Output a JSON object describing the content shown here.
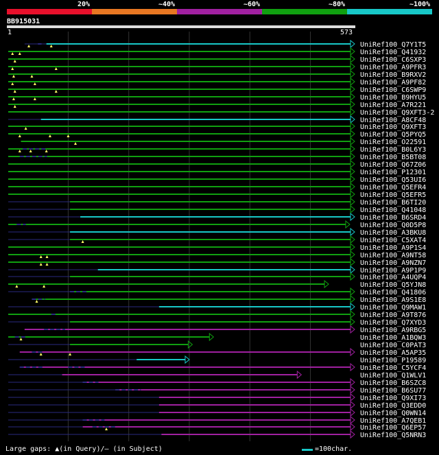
{
  "legend": {
    "labels": [
      "20%",
      "~40%",
      "~60%",
      "~80%",
      "~100%"
    ],
    "colors": [
      "#e8102b",
      "#e87722",
      "#a020a0",
      "#10a010",
      "#18c8c8"
    ]
  },
  "query": {
    "id": "BB915031",
    "start": "1",
    "end": "573",
    "length": 573
  },
  "colors": {
    "navy": "#2a2a80",
    "gridline": "#333333",
    "gap_marker": "#ffff66",
    "background": "#000000"
  },
  "hits": [
    {
      "name": "UniRef100_Q7Y1T5",
      "color": "cyan",
      "start": 28,
      "end": 573,
      "solid_from": 64,
      "gaps": [
        35,
        72
      ],
      "sgaps": [
        [
          50,
          56
        ]
      ]
    },
    {
      "name": "UniRef100_Q41932",
      "color": "green",
      "start": 1,
      "end": 573,
      "solid_from": 1,
      "gaps": [
        8,
        20
      ],
      "sgaps": []
    },
    {
      "name": "UniRef100_C6SXP3",
      "color": "green",
      "start": 1,
      "end": 573,
      "solid_from": 1,
      "gaps": [
        12
      ],
      "sgaps": []
    },
    {
      "name": "UniRef100_A9PFR3",
      "color": "green",
      "start": 1,
      "end": 573,
      "solid_from": 1,
      "gaps": [
        8,
        80
      ],
      "sgaps": []
    },
    {
      "name": "UniRef100_B9RXV2",
      "color": "green",
      "start": 1,
      "end": 573,
      "solid_from": 1,
      "gaps": [
        10,
        40
      ],
      "sgaps": []
    },
    {
      "name": "UniRef100_A9PF82",
      "color": "green",
      "start": 1,
      "end": 573,
      "solid_from": 1,
      "gaps": [
        8,
        45
      ],
      "sgaps": []
    },
    {
      "name": "UniRef100_C6SWP9",
      "color": "green",
      "start": 1,
      "end": 573,
      "solid_from": 1,
      "gaps": [
        12,
        80
      ],
      "sgaps": []
    },
    {
      "name": "UniRef100_B9HYU5",
      "color": "green",
      "start": 1,
      "end": 573,
      "solid_from": 1,
      "gaps": [
        10,
        45
      ],
      "sgaps": []
    },
    {
      "name": "UniRef100_A7R221",
      "color": "green",
      "start": 1,
      "end": 573,
      "solid_from": 1,
      "gaps": [
        12
      ],
      "sgaps": []
    },
    {
      "name": "UniRef100_Q9XFT3-2",
      "color": "green",
      "start": 1,
      "end": 573,
      "solid_from": 1,
      "gaps": [],
      "sgaps": []
    },
    {
      "name": "UniRef100_A8CF48",
      "color": "cyan",
      "start": 1,
      "end": 573,
      "solid_from": 55,
      "gaps": [],
      "sgaps": []
    },
    {
      "name": "UniRef100_Q9XFT3",
      "color": "green",
      "start": 1,
      "end": 573,
      "solid_from": 1,
      "gaps": [
        30
      ],
      "sgaps": []
    },
    {
      "name": "UniRef100_Q5PYQ5",
      "color": "green",
      "start": 1,
      "end": 573,
      "solid_from": 1,
      "gaps": [
        20,
        70,
        100
      ],
      "sgaps": []
    },
    {
      "name": "UniRef100_O22591",
      "color": "green",
      "start": 22,
      "end": 573,
      "solid_from": 22,
      "gaps": [
        112
      ],
      "sgaps": []
    },
    {
      "name": "UniRef100_B0L6Y3",
      "color": "green",
      "start": 1,
      "end": 573,
      "solid_from": 1,
      "gaps": [
        20,
        38,
        64
      ],
      "sgaps": [
        [
          25,
          64
        ]
      ]
    },
    {
      "name": "UniRef100_B5BT08",
      "color": "green",
      "start": 1,
      "end": 573,
      "solid_from": 1,
      "gaps": [],
      "sgaps": [
        [
          20,
          65
        ]
      ]
    },
    {
      "name": "UniRef100_Q67Z06",
      "color": "green",
      "start": 1,
      "end": 573,
      "solid_from": 1,
      "gaps": [],
      "sgaps": []
    },
    {
      "name": "UniRef100_P12301",
      "color": "green",
      "start": 1,
      "end": 573,
      "solid_from": 1,
      "gaps": [],
      "sgaps": []
    },
    {
      "name": "UniRef100_Q53UI6",
      "color": "green",
      "start": 1,
      "end": 573,
      "solid_from": 1,
      "gaps": [],
      "sgaps": []
    },
    {
      "name": "UniRef100_Q5EFR4",
      "color": "green",
      "start": 1,
      "end": 573,
      "solid_from": 1,
      "gaps": [],
      "sgaps": []
    },
    {
      "name": "UniRef100_Q5EFR5",
      "color": "green",
      "start": 1,
      "end": 573,
      "solid_from": 1,
      "gaps": [],
      "sgaps": []
    },
    {
      "name": "UniRef100_B6TI20",
      "color": "green",
      "start": 1,
      "end": 573,
      "solid_from": 103,
      "gaps": [],
      "sgaps": []
    },
    {
      "name": "UniRef100_Q41048",
      "color": "green",
      "start": 1,
      "end": 573,
      "solid_from": 103,
      "gaps": [],
      "sgaps": []
    },
    {
      "name": "UniRef100_B6SRD4",
      "color": "cyan",
      "start": 1,
      "end": 573,
      "solid_from": 120,
      "gaps": [],
      "sgaps": []
    },
    {
      "name": "UniRef100_Q0D5P8",
      "color": "green",
      "start": 1,
      "end": 565,
      "solid_from": 1,
      "gaps": [],
      "sgaps": [
        [
          15,
          30
        ]
      ]
    },
    {
      "name": "UniRef100_A3BKU8",
      "color": "cyan",
      "start": 1,
      "end": 573,
      "solid_from": 103,
      "gaps": [],
      "sgaps": []
    },
    {
      "name": "UniRef100_C5XAT4",
      "color": "green",
      "start": 1,
      "end": 573,
      "solid_from": 103,
      "gaps": [
        124
      ],
      "sgaps": []
    },
    {
      "name": "UniRef100_A9P1S4",
      "color": "green",
      "start": 1,
      "end": 573,
      "solid_from": 1,
      "gaps": [],
      "sgaps": []
    },
    {
      "name": "UniRef100_A9NT58",
      "color": "green",
      "start": 1,
      "end": 573,
      "solid_from": 1,
      "gaps": [
        55,
        65
      ],
      "sgaps": []
    },
    {
      "name": "UniRef100_A9NZN7",
      "color": "green",
      "start": 1,
      "end": 573,
      "solid_from": 1,
      "gaps": [
        55,
        65
      ],
      "sgaps": []
    },
    {
      "name": "UniRef100_A9P1P9",
      "color": "cyan",
      "start": 1,
      "end": 573,
      "solid_from": 149,
      "gaps": [],
      "sgaps": []
    },
    {
      "name": "UniRef100_A4UQP4",
      "color": "green",
      "start": 1,
      "end": 573,
      "solid_from": 103,
      "gaps": [],
      "sgaps": []
    },
    {
      "name": "UniRef100_Q5YJN8",
      "color": "green",
      "start": 1,
      "end": 530,
      "solid_from": 1,
      "gaps": [
        15,
        60
      ],
      "sgaps": []
    },
    {
      "name": "UniRef100_Q41806",
      "color": "green",
      "start": 1,
      "end": 573,
      "solid_from": 103,
      "gaps": [],
      "sgaps": [
        [
          103,
          130
        ]
      ]
    },
    {
      "name": "UniRef100_A9S1E8",
      "color": "green",
      "start": 40,
      "end": 573,
      "solid_from": 40,
      "gaps": [
        48
      ],
      "sgaps": [
        [
          40,
          62
        ]
      ]
    },
    {
      "name": "UniRef100_Q9MAW1",
      "color": "cyan",
      "start": 1,
      "end": 573,
      "solid_from": 250,
      "gaps": [],
      "sgaps": []
    },
    {
      "name": "UniRef100_A9T876",
      "color": "green",
      "start": 1,
      "end": 573,
      "solid_from": 1,
      "gaps": [],
      "sgaps": [
        [
          72,
          80
        ]
      ]
    },
    {
      "name": "UniRef100_Q7XYD3",
      "color": "green",
      "start": 1,
      "end": 573,
      "solid_from": 103,
      "gaps": [],
      "sgaps": []
    },
    {
      "name": "UniRef100_A9RBG5",
      "color": "purple",
      "start": 28,
      "end": 573,
      "solid_from": 28,
      "gaps": [],
      "sgaps": [
        [
          60,
          95
        ]
      ]
    },
    {
      "name": "UniRef100_A1BQW3",
      "color": "green",
      "start": 1,
      "end": 340,
      "solid_from": 1,
      "gaps": [
        22
      ],
      "sgaps": [
        [
          12,
          30
        ]
      ]
    },
    {
      "name": "UniRef100_C0PAT3",
      "color": "green",
      "start": 1,
      "end": 305,
      "solid_from": 103,
      "gaps": [],
      "sgaps": []
    },
    {
      "name": "UniRef100_A5AP35",
      "color": "purple",
      "start": 20,
      "end": 573,
      "solid_from": 20,
      "gaps": [
        55,
        103
      ],
      "sgaps": [
        [
          40,
          60
        ]
      ]
    },
    {
      "name": "UniRef100_P19589",
      "color": "cyan",
      "start": 1,
      "end": 300,
      "solid_from": 213,
      "gaps": [],
      "sgaps": []
    },
    {
      "name": "UniRef100_C5YCF4",
      "color": "purple",
      "start": 20,
      "end": 573,
      "solid_from": 20,
      "gaps": [],
      "sgaps": [
        [
          20,
          60
        ],
        [
          100,
          130
        ]
      ]
    },
    {
      "name": "UniRef100_Q1WLV1",
      "color": "purple",
      "start": 1,
      "end": 485,
      "solid_from": 90,
      "gaps": [],
      "sgaps": []
    },
    {
      "name": "UniRef100_B6SZC8",
      "color": "purple",
      "start": 1,
      "end": 573,
      "solid_from": 124,
      "gaps": [],
      "sgaps": [
        [
          124,
          150
        ]
      ]
    },
    {
      "name": "UniRef100_B6SU77",
      "color": "purple",
      "start": 1,
      "end": 573,
      "solid_from": 178,
      "gaps": [],
      "sgaps": [
        [
          178,
          220
        ]
      ]
    },
    {
      "name": "UniRef100_Q9XI73",
      "color": "purple",
      "start": 1,
      "end": 573,
      "solid_from": 250,
      "gaps": [],
      "sgaps": []
    },
    {
      "name": "UniRef100_Q3EDD0",
      "color": "purple",
      "start": 1,
      "end": 573,
      "solid_from": 250,
      "gaps": [],
      "sgaps": []
    },
    {
      "name": "UniRef100_Q0WN14",
      "color": "purple",
      "start": 1,
      "end": 573,
      "solid_from": 250,
      "gaps": [],
      "sgaps": []
    },
    {
      "name": "UniRef100_A7QEB1",
      "color": "purple",
      "start": 1,
      "end": 573,
      "solid_from": 124,
      "gaps": [],
      "sgaps": [
        [
          124,
          160
        ]
      ]
    },
    {
      "name": "UniRef100_Q6EP57",
      "color": "purple",
      "start": 1,
      "end": 573,
      "solid_from": 124,
      "gaps": [
        163
      ],
      "sgaps": [
        [
          140,
          180
        ]
      ]
    },
    {
      "name": "UniRef100_Q5NRN3",
      "color": "purple",
      "start": 1,
      "end": 573,
      "solid_from": 254,
      "gaps": [],
      "sgaps": []
    }
  ],
  "footer": {
    "gaps_text": "Large gaps: ▲(in Query)/– (in Subject)",
    "scale_text": "=100char."
  }
}
